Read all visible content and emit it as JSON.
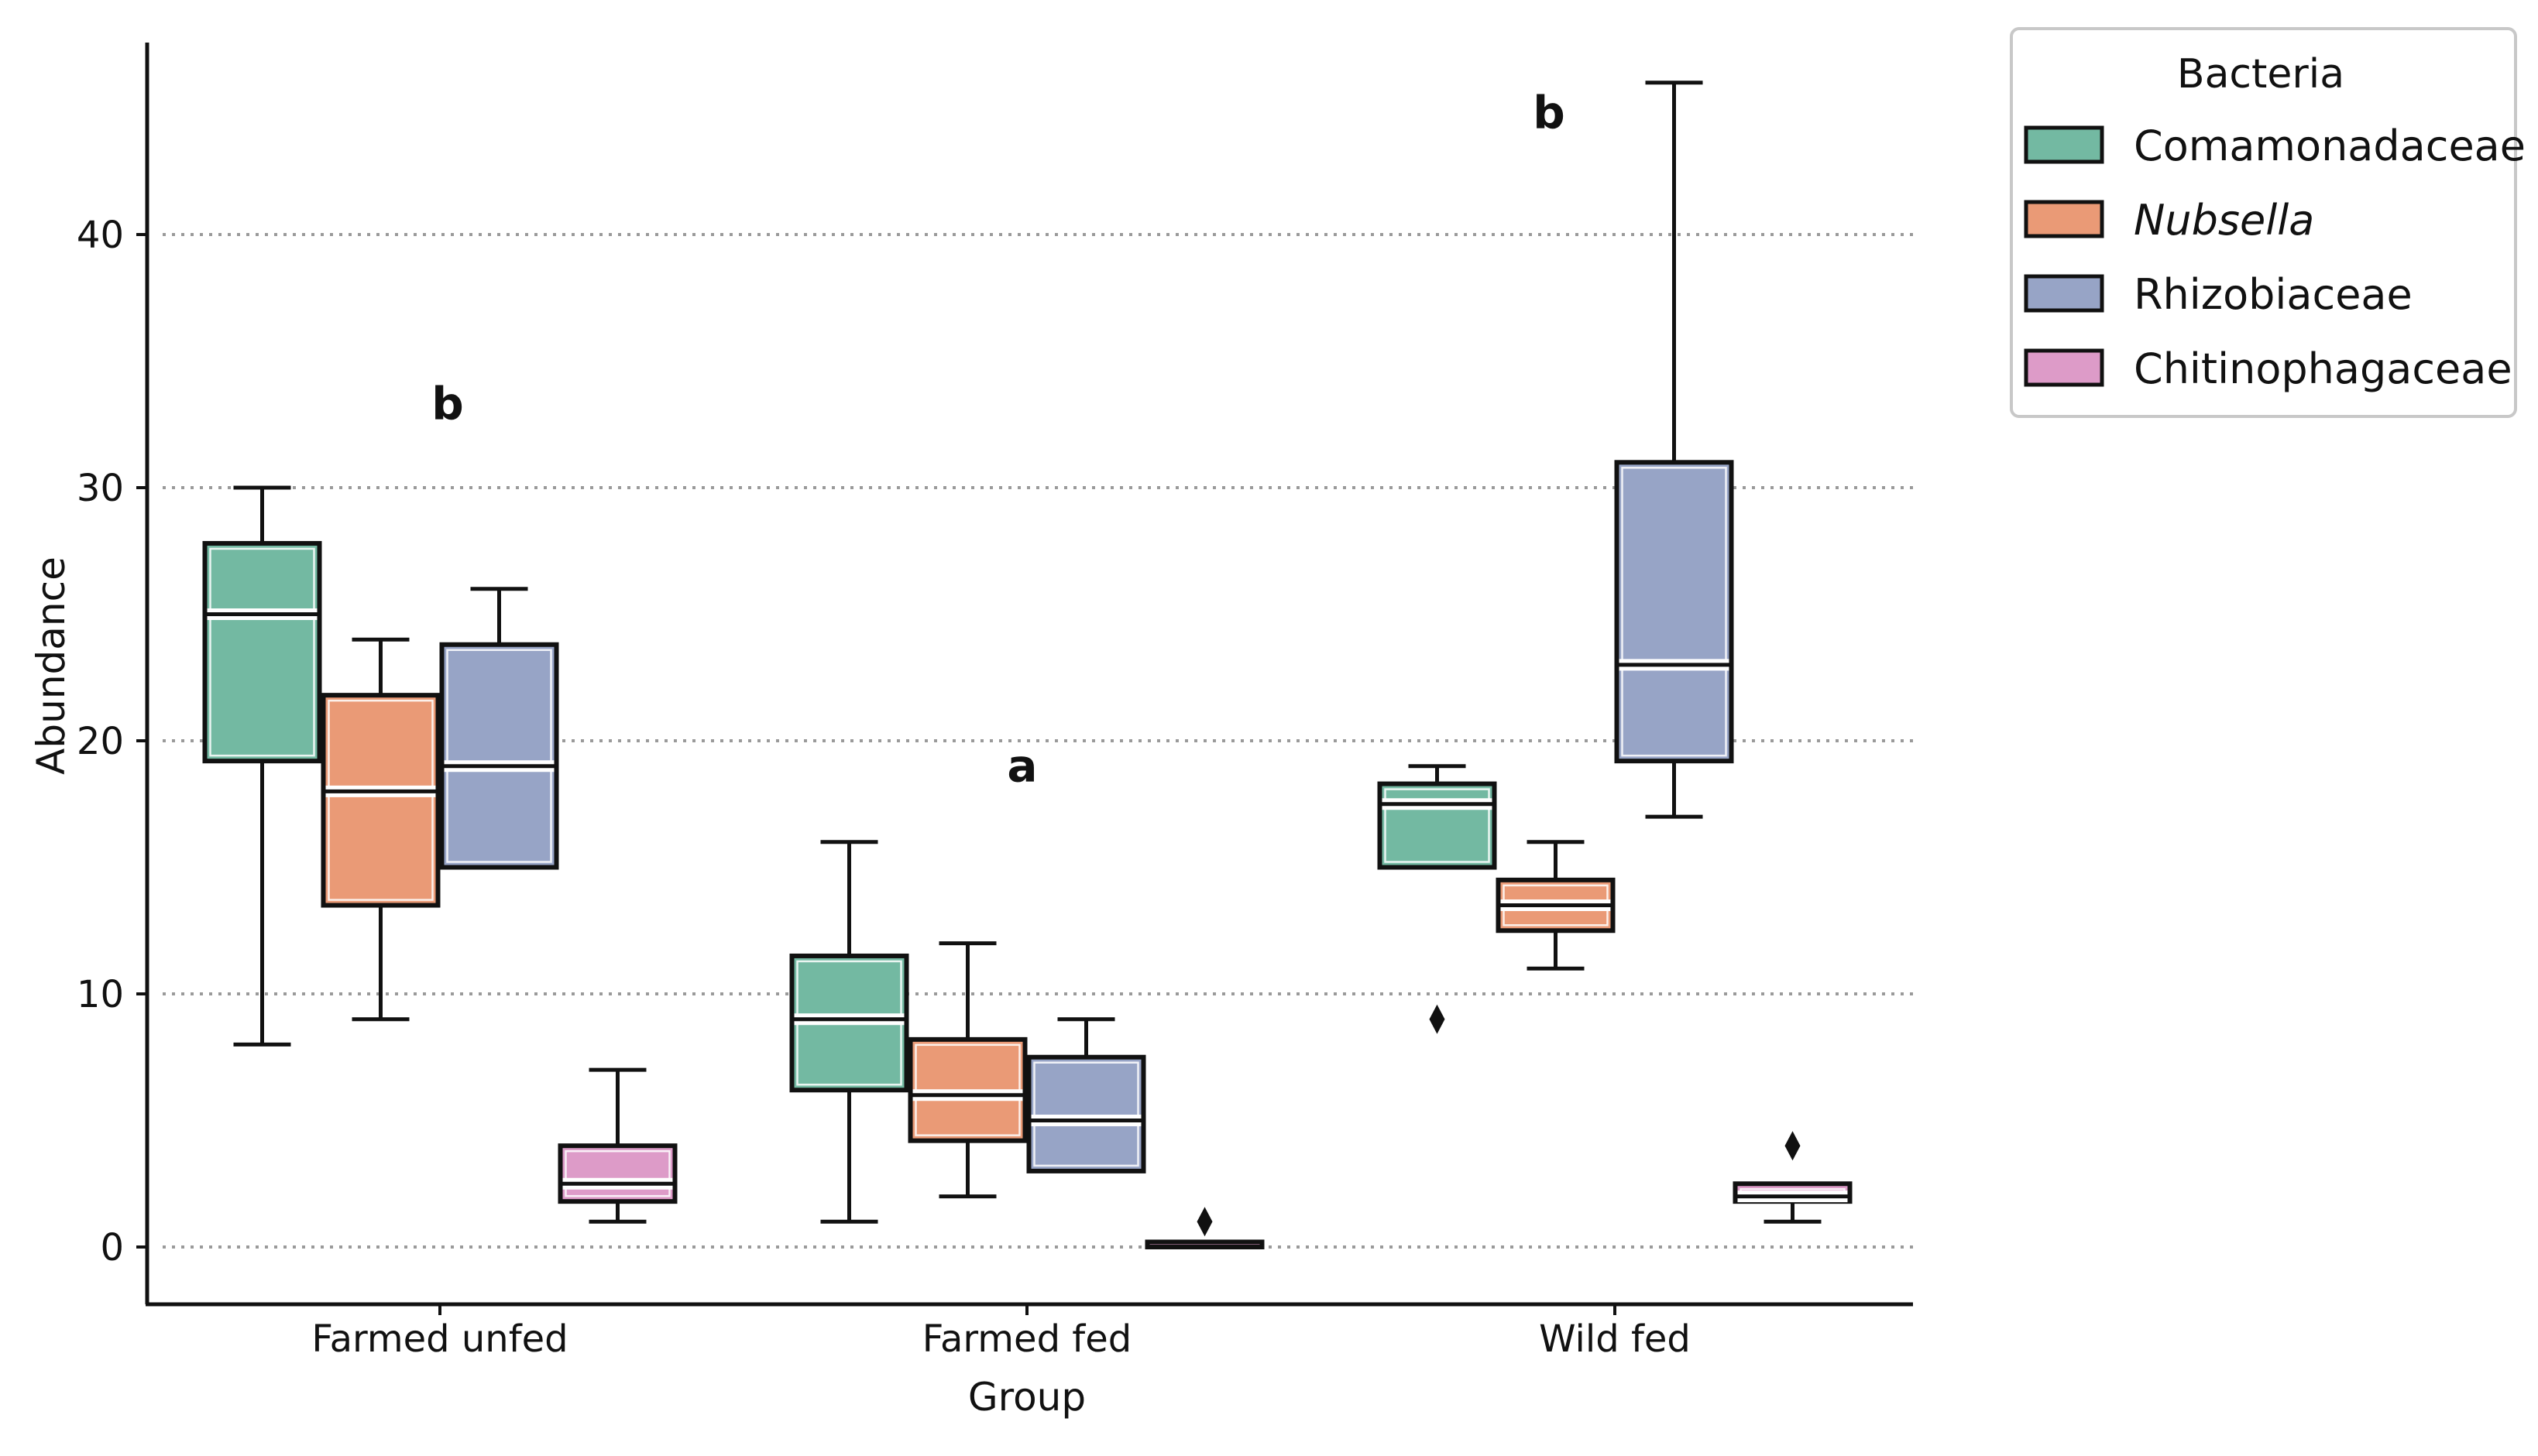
{
  "chart_data": {
    "type": "boxplot",
    "xlabel": "Group",
    "ylabel": "Abundance",
    "ylim": [
      -2.2,
      47.5
    ],
    "yticks": [
      0,
      10,
      20,
      30,
      40
    ],
    "grid": "horizontal dotted",
    "categories": [
      "Farmed unfed",
      "Farmed fed",
      "Wild fed"
    ],
    "significance_labels": [
      "b",
      "a",
      "b"
    ],
    "legend": {
      "title": "Bacteria",
      "placement": "outside right, top",
      "entries": [
        {
          "name": "Comamonadaceae",
          "italic": false
        },
        {
          "name": "Nubsella",
          "italic": true
        },
        {
          "name": "Rhizobiaceae",
          "italic": false
        },
        {
          "name": "Chitinophagaceae",
          "italic": false
        }
      ]
    },
    "colors": {
      "Comamonadaceae": "#73b9a2",
      "Nubsella": "#ea9a76",
      "Rhizobiaceae": "#97a4c6",
      "Chitinophagaceae": "#dd9bc8"
    },
    "series": [
      {
        "name": "Comamonadaceae",
        "boxes": [
          {
            "whisker_low": 8,
            "q1": 19.2,
            "median": 25,
            "q3": 27.8,
            "whisker_high": 30,
            "outliers": []
          },
          {
            "whisker_low": 1,
            "q1": 6.2,
            "median": 9,
            "q3": 11.5,
            "whisker_high": 16,
            "outliers": []
          },
          {
            "whisker_low": 15,
            "q1": 15,
            "median": 17.5,
            "q3": 18.3,
            "whisker_high": 19,
            "outliers": [
              9
            ]
          }
        ]
      },
      {
        "name": "Nubsella",
        "boxes": [
          {
            "whisker_low": 9,
            "q1": 13.5,
            "median": 18,
            "q3": 21.8,
            "whisker_high": 24,
            "outliers": []
          },
          {
            "whisker_low": 2,
            "q1": 4.2,
            "median": 6,
            "q3": 8.2,
            "whisker_high": 12,
            "outliers": []
          },
          {
            "whisker_low": 11,
            "q1": 12.5,
            "median": 13.5,
            "q3": 14.5,
            "whisker_high": 16,
            "outliers": []
          }
        ]
      },
      {
        "name": "Rhizobiaceae",
        "boxes": [
          {
            "whisker_low": 15,
            "q1": 15,
            "median": 19,
            "q3": 23.8,
            "whisker_high": 26,
            "outliers": []
          },
          {
            "whisker_low": 3,
            "q1": 3,
            "median": 5,
            "q3": 7.5,
            "whisker_high": 9,
            "outliers": []
          },
          {
            "whisker_low": 17,
            "q1": 19.2,
            "median": 23,
            "q3": 31,
            "whisker_high": 46,
            "outliers": []
          }
        ]
      },
      {
        "name": "Chitinophagaceae",
        "boxes": [
          {
            "whisker_low": 1,
            "q1": 1.8,
            "median": 2.5,
            "q3": 4,
            "whisker_high": 7,
            "outliers": []
          },
          {
            "whisker_low": 0,
            "q1": 0,
            "median": 0.1,
            "q3": 0.2,
            "whisker_high": 0.2,
            "outliers": [
              1
            ]
          },
          {
            "whisker_low": 1,
            "q1": 1.8,
            "median": 2,
            "q3": 2.5,
            "whisker_high": 2.5,
            "outliers": [
              4
            ]
          }
        ]
      }
    ]
  }
}
